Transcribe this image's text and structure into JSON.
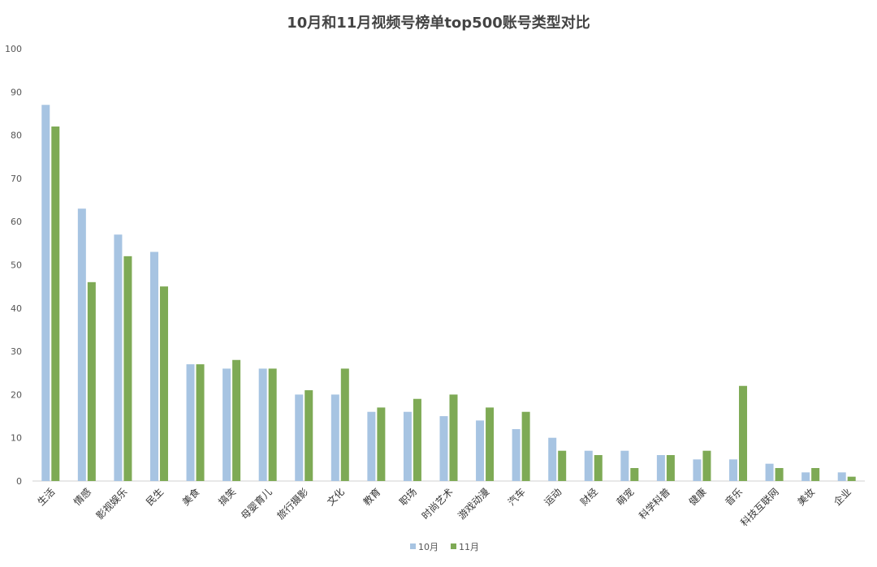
{
  "chart_data": {
    "type": "bar",
    "title": "10月和11月视频号榜单top500账号类型对比",
    "xlabel": "",
    "ylabel": "",
    "ylim": [
      0,
      100
    ],
    "yticks": [
      0,
      10,
      20,
      30,
      40,
      50,
      60,
      70,
      80,
      90,
      100
    ],
    "grid": false,
    "legend": "bottom",
    "categories": [
      "生活",
      "情感",
      "影视娱乐",
      "民生",
      "美食",
      "搞笑",
      "母婴育儿",
      "旅行摄影",
      "文化",
      "教育",
      "职场",
      "时尚艺术",
      "游戏动漫",
      "汽车",
      "运动",
      "财经",
      "萌宠",
      "科学科普",
      "健康",
      "音乐",
      "科技互联网",
      "美妆",
      "企业"
    ],
    "series": [
      {
        "name": "10月",
        "color": "#a7c4e2",
        "values": [
          87,
          63,
          57,
          53,
          27,
          26,
          26,
          20,
          20,
          16,
          16,
          15,
          14,
          12,
          10,
          7,
          7,
          6,
          5,
          5,
          4,
          2,
          2
        ]
      },
      {
        "name": "11月",
        "color": "#7eaa55",
        "values": [
          82,
          46,
          52,
          45,
          27,
          28,
          26,
          21,
          26,
          17,
          19,
          20,
          17,
          16,
          7,
          6,
          3,
          6,
          7,
          22,
          3,
          3,
          1
        ]
      }
    ]
  }
}
